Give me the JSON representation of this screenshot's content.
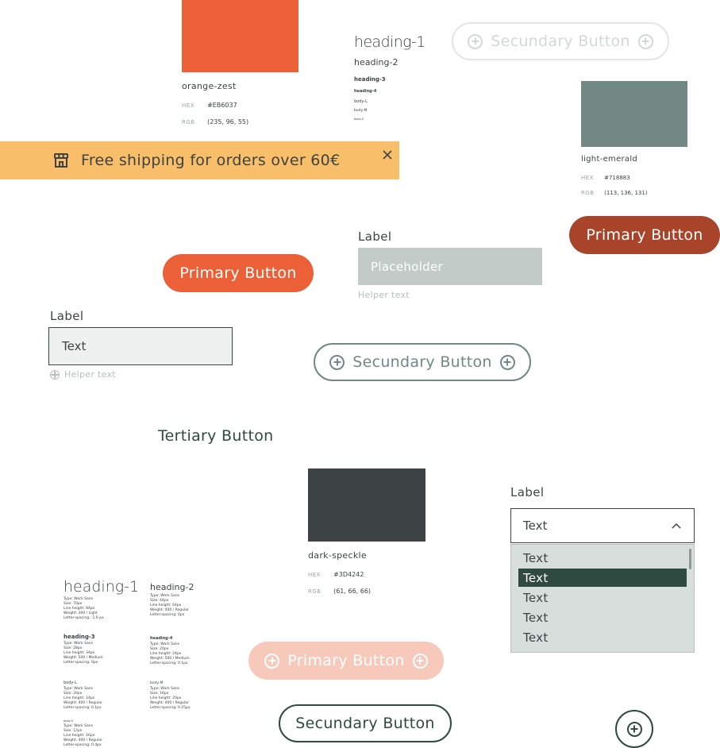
{
  "colors": {
    "orange_zest": "#EB6037",
    "light_emerald": "#718883",
    "dark_speckle": "#3D4242",
    "banner": "#F8BE6A",
    "rust": "#A8442A",
    "disabled_orange": "#F7C9BA",
    "input_disabled": "#C3CBC8",
    "dropdown_bg": "#D8DEDC",
    "white": "#ffffff"
  },
  "swatches": {
    "orange": {
      "name": "orange-zest",
      "hex_label": "HEX",
      "hex": "#EB6037",
      "rgb_label": "RGB",
      "rgb": "(235, 96, 55)"
    },
    "emerald": {
      "name": "light-emerald",
      "hex_label": "HEX",
      "hex": "#718883",
      "rgb_label": "RGB",
      "rgb": "(113, 136, 131)"
    },
    "speckle": {
      "name": "dark-speckle",
      "hex_label": "HEX",
      "hex": "#3D4242",
      "rgb_label": "RGB",
      "rgb": "(61, 66, 66)"
    }
  },
  "type_preview": {
    "h1": "heading-1",
    "h2": "heading-2",
    "h3": "heading-3",
    "h4": "heading-4",
    "bl": "body-L",
    "bm": "body-M",
    "bs": "body-S"
  },
  "banner": {
    "text": "Free shipping for orders over 60€",
    "icon": "shop-icon",
    "close_icon": "close-icon"
  },
  "buttons": {
    "secondary_disabled": "Secundary Button",
    "primary_rust": "Primary Button",
    "primary_orange": "Primary Button",
    "secondary_icons": "Secundary Button",
    "tertiary": "Tertiary Button",
    "primary_disabled": "Primary Button",
    "secondary_plain": "Secundary Button"
  },
  "input_disabled": {
    "label": "Label",
    "placeholder": "Placeholder",
    "helper": "Helper text"
  },
  "input_default": {
    "label": "Label",
    "value": "Text",
    "helper": "Helper text"
  },
  "select": {
    "label": "Label",
    "value": "Text",
    "options": [
      "Text",
      "Text",
      "Text",
      "Text",
      "Text"
    ],
    "selected_index": 1
  },
  "type_specs": [
    {
      "name": "heading-1",
      "lines": [
        "Type: Work Sans",
        "Size: 70px",
        "Line height: 84px",
        "Weight: 300 / Light",
        "Letter-spacing: -1.6 px"
      ]
    },
    {
      "name": "heading-2",
      "lines": [
        "Type: Work Sans",
        "Size: 44px",
        "Line height: 64px",
        "Weight: 400 / Regular",
        "Letter-spacing: 0px"
      ]
    },
    {
      "name": "heading-3",
      "lines": [
        "Type: Work Sans",
        "Size: 28px",
        "Line height: 34px",
        "Weight: 500 / Medium",
        "Letter-spacing: 0px"
      ]
    },
    {
      "name": "heading-4",
      "lines": [
        "Type: Work Sans",
        "Size: 20px",
        "Line height: 24px",
        "Weight: 500 / Medium",
        "Letter-spacing: 0.1px"
      ]
    },
    {
      "name": "body-L",
      "lines": [
        "Type: Work Sans",
        "Size: 20px",
        "Line height: 24px",
        "Weight: 400 / Regular",
        "Letter-spacing: 0.1px"
      ]
    },
    {
      "name": "body-M",
      "lines": [
        "Type: Work Sans",
        "Size: 16px",
        "Line height: 20px",
        "Weight: 400 / Regular",
        "Letter-spacing: 0.25px"
      ]
    },
    {
      "name": "body-S",
      "lines": [
        "Type: Work Sans",
        "Size: 12px",
        "Line height: 16px",
        "Weight: 400 / Regular",
        "Letter-spacing: 0.4px"
      ]
    }
  ],
  "icons": {
    "plus": "plus-circle-icon",
    "chevron": "chevron-up-icon"
  }
}
